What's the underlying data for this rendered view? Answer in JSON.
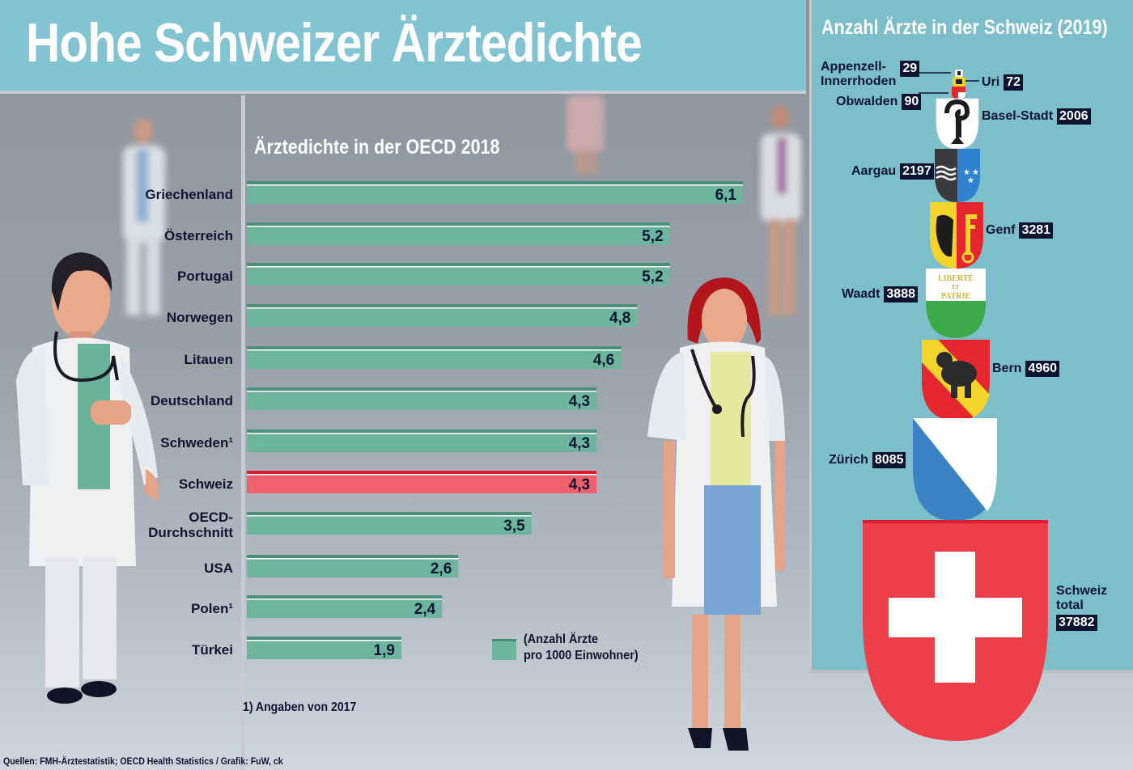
{
  "header": {
    "title": "Hohe Schweizer Ärztedichte"
  },
  "chart_data": {
    "type": "bar",
    "orientation": "horizontal",
    "title": "Ärztedichte in der OECD 2018",
    "categories": [
      "Griechenland",
      "Österreich",
      "Portugal",
      "Norwegen",
      "Litauen",
      "Deutschland",
      "Schweden¹",
      "Schweiz",
      "OECD-Durchschnitt",
      "USA",
      "Polen¹",
      "Türkei"
    ],
    "category_lines": [
      [
        "Griechenland"
      ],
      [
        "Österreich"
      ],
      [
        "Portugal"
      ],
      [
        "Norwegen"
      ],
      [
        "Litauen"
      ],
      [
        "Deutschland"
      ],
      [
        "Schweden¹"
      ],
      [
        "Schweiz"
      ],
      [
        "OECD-",
        "Durchschnitt"
      ],
      [
        "USA"
      ],
      [
        "Polen¹"
      ],
      [
        "Türkei"
      ]
    ],
    "values": [
      6.1,
      5.2,
      5.2,
      4.8,
      4.6,
      4.3,
      4.3,
      4.3,
      3.5,
      2.6,
      2.4,
      1.9
    ],
    "value_labels": [
      "6,1",
      "5,2",
      "5,2",
      "4,8",
      "4,6",
      "4,3",
      "4,3",
      "4,3",
      "3,5",
      "2,6",
      "2,4",
      "1,9"
    ],
    "highlight": "Schweiz",
    "colors": {
      "bar": "#6db59c",
      "bar_top": "#4a9078",
      "highlight": "#ef5f6c",
      "highlight_top": "#d9202f"
    },
    "legend": {
      "lines": [
        "(Anzahl Ärzte",
        "pro 1000 Einwohner)"
      ],
      "position": "bottom-right"
    },
    "xlim": [
      0,
      6.5
    ],
    "xlabel": "",
    "ylabel": "",
    "grid": false
  },
  "footnote": "1) Angaben von 2017",
  "source": "Quellen: FMH-Ärztestatistik; OECD Health Statistics / Grafik: FuW, ck",
  "cantons": {
    "title": "Anzahl Ärzte in der Schweiz (2019)",
    "items": [
      {
        "name": "Appenzell-Innerrhoden",
        "lines": [
          "Appenzell-",
          "Innerrhoden"
        ],
        "count": "29",
        "colors": [
          "#ffffff",
          "#222222"
        ]
      },
      {
        "name": "Uri",
        "lines": [
          "Uri"
        ],
        "count": "72",
        "colors": [
          "#f2d21c",
          "#222222"
        ]
      },
      {
        "name": "Obwalden",
        "lines": [
          "Obwalden"
        ],
        "count": "90",
        "colors": [
          "#e2272f",
          "#ffffff"
        ]
      },
      {
        "name": "Basel-Stadt",
        "lines": [
          "Basel-Stadt"
        ],
        "count": "2006",
        "colors": [
          "#ffffff",
          "#1c1c1c"
        ]
      },
      {
        "name": "Aargau",
        "lines": [
          "Aargau"
        ],
        "count": "2197",
        "colors": [
          "#3a3a3e",
          "#2f82d0"
        ]
      },
      {
        "name": "Genf",
        "lines": [
          "Genf"
        ],
        "count": "3281",
        "colors": [
          "#f4d32a",
          "#e6262f"
        ]
      },
      {
        "name": "Waadt",
        "lines": [
          "Waadt"
        ],
        "count": "3888",
        "colors": [
          "#ffffff",
          "#3daa4a"
        ],
        "motto": [
          "LIBERTÉ",
          "ET",
          "PATRIE"
        ]
      },
      {
        "name": "Bern",
        "lines": [
          "Bern"
        ],
        "count": "4960",
        "colors": [
          "#e6262f",
          "#f4d32a"
        ]
      },
      {
        "name": "Zürich",
        "lines": [
          "Zürich"
        ],
        "count": "8085",
        "colors": [
          "#ffffff",
          "#3a82c4"
        ]
      },
      {
        "name": "Schweiz total",
        "lines": [
          "Schweiz",
          "total"
        ],
        "count": "37882",
        "colors": [
          "#ec3f4a",
          "#ffffff"
        ]
      }
    ]
  }
}
